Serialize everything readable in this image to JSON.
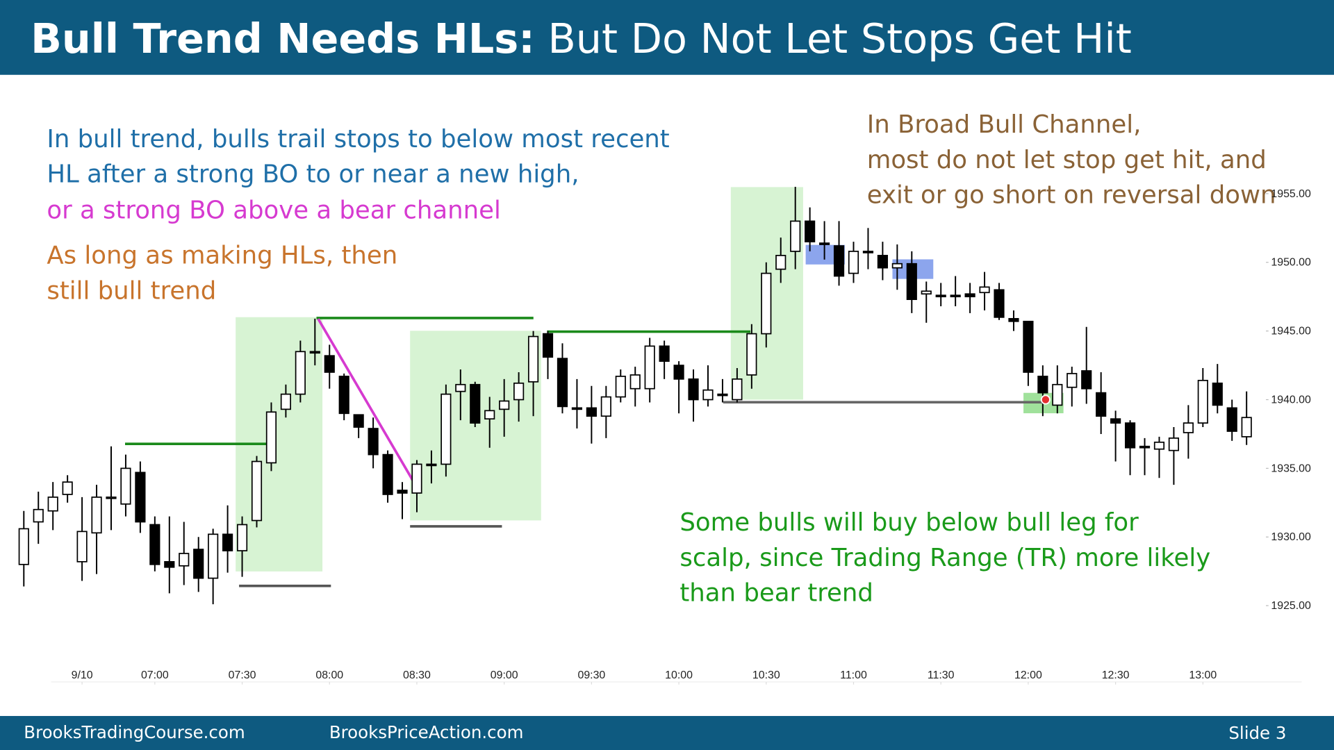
{
  "header": {
    "title_bold": "Bull Trend Needs HLs:",
    "title_rest": "But Do Not Let Stops Get Hit"
  },
  "footer": {
    "left": "BrooksTradingCourse.com",
    "middle": "BrooksPriceAction.com",
    "slide": "Slide  3"
  },
  "annotations": [
    {
      "color": "#1f6fa8",
      "lines": [
        "In bull trend, bulls trail stops to below most recent",
        "HL after a strong BO to or near a new high,"
      ]
    },
    {
      "color": "#d63ad0",
      "lines": [
        "or a strong BO above a bear channel"
      ]
    },
    {
      "color": "#c8742c",
      "lines": [
        "As long as making HLs, then",
        "still bull trend"
      ]
    },
    {
      "color": "#8a6236",
      "lines": [
        "In Broad Bull Channel,",
        "most do not let stop get hit, and",
        "exit or go short on reversal down"
      ]
    },
    {
      "color": "#1a9a1a",
      "lines": [
        "Some bulls will buy below bull leg for",
        "scalp, since Trading Range (TR) more likely",
        "than bear trend"
      ]
    }
  ],
  "chart_data": {
    "type": "candlestick",
    "open": [
      1928.0,
      1931.1,
      1931.9,
      1933.1,
      1928.2,
      1930.3,
      1932.9,
      1932.4,
      1934.7,
      1930.9,
      1928.2,
      1927.9,
      1929.1,
      1927.0,
      1930.2,
      1929.0,
      1931.2,
      1935.4,
      1939.3,
      1940.4,
      1943.5,
      1943.2,
      1941.7,
      1938.9,
      1937.9,
      1936.0,
      1933.4,
      1933.2,
      1935.3,
      1935.3,
      1940.6,
      1941.1,
      1938.6,
      1939.3,
      1940.0,
      1941.3,
      1944.8,
      1943.0,
      1939.4,
      1939.4,
      1938.8,
      1940.2,
      1940.8,
      1940.8,
      1943.9,
      1942.5,
      1941.5,
      1940.0,
      1940.4,
      1940.0,
      1941.8,
      1944.8,
      1949.5,
      1950.8,
      1953.0,
      1951.4,
      1951.2,
      1949.2,
      1950.8,
      1950.5,
      1949.6,
      1949.9,
      1947.7,
      1947.6,
      1947.6,
      1947.7,
      1947.8,
      1948.0,
      1945.9,
      1945.7,
      1941.7,
      1939.6,
      1940.9,
      1942.1,
      1940.5,
      1938.6,
      1938.3,
      1936.6,
      1936.4,
      1936.3,
      1937.6,
      1938.3,
      1941.2,
      1939.4,
      1937.3
    ],
    "high": [
      1931.9,
      1933.3,
      1934.0,
      1934.5,
      1932.9,
      1933.8,
      1936.6,
      1936.0,
      1935.5,
      1931.5,
      1931.5,
      1931.1,
      1930.0,
      1930.6,
      1932.3,
      1931.5,
      1935.9,
      1939.8,
      1941.1,
      1944.3,
      1945.9,
      1944.0,
      1941.9,
      1938.9,
      1938.7,
      1936.3,
      1934.0,
      1935.6,
      1936.3,
      1941.1,
      1942.2,
      1941.3,
      1940.2,
      1941.5,
      1942.0,
      1945.0,
      1945.0,
      1944.1,
      1941.5,
      1941.0,
      1941.0,
      1942.2,
      1942.4,
      1944.5,
      1944.3,
      1942.8,
      1942.2,
      1942.5,
      1941.5,
      1942.3,
      1945.5,
      1950.0,
      1951.8,
      1955.5,
      1954.0,
      1953.0,
      1953.0,
      1951.5,
      1952.5,
      1951.5,
      1951.3,
      1950.8,
      1948.6,
      1948.5,
      1949.0,
      1948.5,
      1949.3,
      1948.5,
      1946.5,
      1945.7,
      1942.5,
      1942.5,
      1942.4,
      1945.3,
      1942.0,
      1939.2,
      1938.5,
      1937.2,
      1937.3,
      1938.0,
      1939.6,
      1942.3,
      1942.6,
      1940.0,
      1940.6
    ],
    "low": [
      1926.4,
      1929.5,
      1930.5,
      1932.5,
      1926.8,
      1927.3,
      1930.5,
      1931.5,
      1930.3,
      1927.5,
      1925.9,
      1926.5,
      1926.0,
      1925.1,
      1927.4,
      1927.1,
      1930.7,
      1934.8,
      1938.7,
      1939.8,
      1942.5,
      1940.8,
      1938.5,
      1937.2,
      1935.0,
      1932.5,
      1931.3,
      1931.8,
      1933.9,
      1934.4,
      1938.5,
      1938.0,
      1936.5,
      1937.3,
      1938.4,
      1938.8,
      1941.5,
      1939.0,
      1937.9,
      1936.8,
      1937.2,
      1939.8,
      1939.5,
      1939.8,
      1941.5,
      1939.0,
      1938.4,
      1939.5,
      1939.8,
      1939.8,
      1940.8,
      1943.8,
      1948.5,
      1949.5,
      1950.8,
      1950.2,
      1948.3,
      1948.5,
      1949.5,
      1948.7,
      1948.0,
      1946.3,
      1945.6,
      1946.8,
      1946.8,
      1946.3,
      1946.5,
      1945.8,
      1945.0,
      1941.0,
      1938.8,
      1939.0,
      1939.5,
      1939.7,
      1937.5,
      1935.5,
      1934.5,
      1934.5,
      1934.3,
      1933.8,
      1935.7,
      1938.0,
      1939.0,
      1937.0,
      1936.7
    ],
    "close": [
      1930.6,
      1932.0,
      1932.9,
      1934.0,
      1930.4,
      1932.9,
      1932.9,
      1935.0,
      1931.1,
      1928.0,
      1927.8,
      1928.8,
      1927.0,
      1930.2,
      1929.0,
      1930.9,
      1935.5,
      1939.1,
      1940.4,
      1943.5,
      1943.4,
      1942.0,
      1939.0,
      1938.0,
      1936.0,
      1933.1,
      1933.2,
      1935.3,
      1935.2,
      1940.4,
      1941.1,
      1938.3,
      1939.2,
      1939.9,
      1941.2,
      1944.6,
      1943.1,
      1939.5,
      1939.3,
      1938.8,
      1940.2,
      1941.7,
      1941.8,
      1943.9,
      1942.8,
      1941.5,
      1940.0,
      1940.7,
      1940.3,
      1941.5,
      1944.8,
      1949.2,
      1950.5,
      1953.0,
      1951.5,
      1951.3,
      1949.0,
      1950.8,
      1950.7,
      1949.6,
      1949.9,
      1947.3,
      1947.9,
      1947.5,
      1947.5,
      1947.5,
      1948.2,
      1946.0,
      1945.7,
      1942.0,
      1940.5,
      1941.1,
      1941.9,
      1940.8,
      1938.8,
      1938.3,
      1936.5,
      1936.5,
      1936.9,
      1937.2,
      1938.3,
      1941.4,
      1939.6,
      1937.7,
      1938.7
    ],
    "ylim": [
      1920,
      1960
    ],
    "yticks": [
      {
        "value": 1925,
        "label": "1925.00"
      },
      {
        "value": 1930,
        "label": "1930.00"
      },
      {
        "value": 1935,
        "label": "1935.00"
      },
      {
        "value": 1940,
        "label": "1940.00"
      },
      {
        "value": 1945,
        "label": "1945.00"
      },
      {
        "value": 1950,
        "label": "1950.00"
      },
      {
        "value": 1955,
        "label": "1955.00"
      }
    ],
    "xticks": [
      {
        "value": 4,
        "label": "9/10"
      },
      {
        "value": 9,
        "label": "07:00"
      },
      {
        "value": 15,
        "label": "07:30"
      },
      {
        "value": 21,
        "label": "08:00"
      },
      {
        "value": 27,
        "label": "08:30"
      },
      {
        "value": 33,
        "label": "09:00"
      },
      {
        "value": 39,
        "label": "09:30"
      },
      {
        "value": 45,
        "label": "10:00"
      },
      {
        "value": 51,
        "label": "10:30"
      },
      {
        "value": 57,
        "label": "11:00"
      },
      {
        "value": 63,
        "label": "11:30"
      },
      {
        "value": 69,
        "label": "12:00"
      },
      {
        "value": 75,
        "label": "12:30"
      },
      {
        "value": 81,
        "label": "13:00"
      }
    ],
    "bull_color": "#ffffff",
    "bear_color": "#000000"
  }
}
